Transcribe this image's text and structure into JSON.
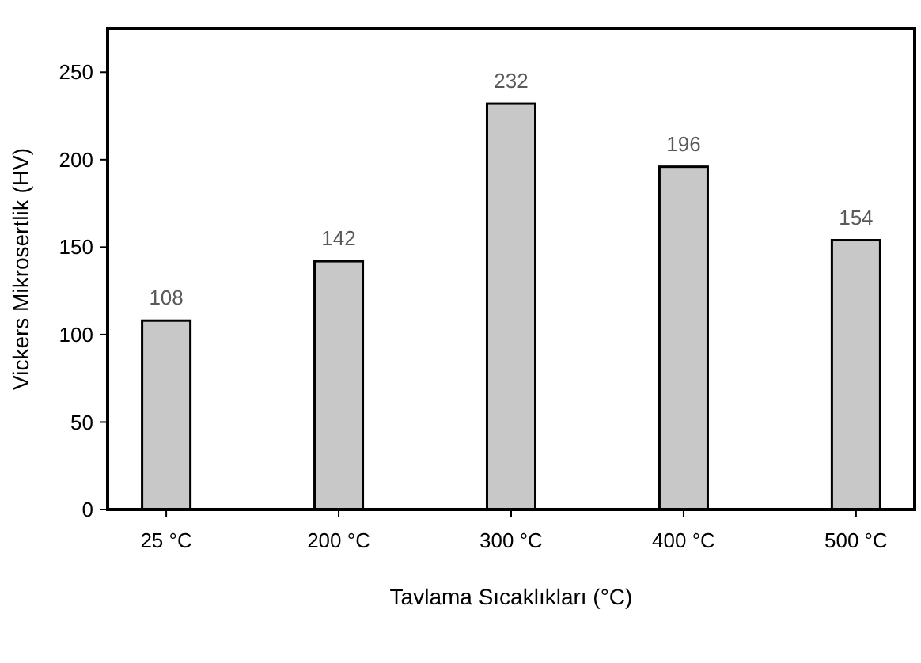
{
  "chart_data": {
    "type": "bar",
    "xlabel": "Tavlama Sıcaklıkları (°C)",
    "ylabel": "Vickers Mikrosertlik (HV)",
    "categories": [
      "25 °C",
      "200 °C",
      "300 °C",
      "400 °C",
      "500 °C"
    ],
    "values": [
      108,
      142,
      232,
      196,
      154
    ],
    "color": "#c8c8c8",
    "ylim": [
      0,
      275
    ],
    "yticks": [
      0,
      50,
      100,
      150,
      200,
      250
    ],
    "grid": false,
    "data_labels": true
  }
}
